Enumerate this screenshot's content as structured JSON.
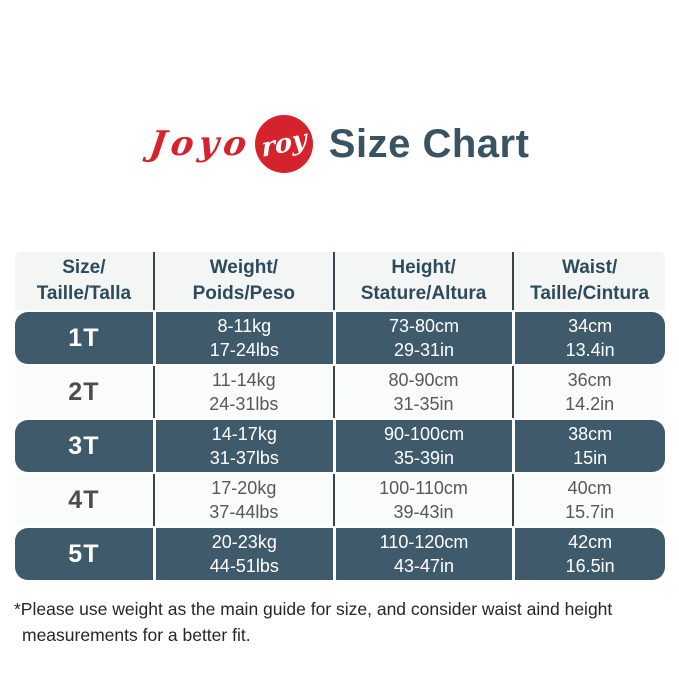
{
  "logo": {
    "left_text": "Joyo",
    "circle_text": "roy"
  },
  "title": "Size Chart",
  "colors": {
    "brand_red": "#d6222d",
    "title_slate": "#3a5363",
    "dark_row_teal": "#3f5a6b",
    "header_text_teal": "#2d4b5c",
    "light_row_text_gray": "#585858",
    "divider_dark": "#36424e",
    "header_band_bg": "#f4f5f5",
    "light_row_bg": "#fafbfb"
  },
  "table": {
    "columns": [
      {
        "id": "size",
        "line1": "Size/",
        "line2": "Taille/Talla"
      },
      {
        "id": "weight",
        "line1": "Weight/",
        "line2": "Poids/Peso"
      },
      {
        "id": "height",
        "line1": "Height/",
        "line2": "Stature/Altura"
      },
      {
        "id": "waist",
        "line1": "Waist/",
        "line2": "Taille/Cintura"
      }
    ],
    "rows": [
      {
        "size": "1T",
        "weight1": "8-11kg",
        "weight2": "17-24lbs",
        "height1": "73-80cm",
        "height2": "29-31in",
        "waist1": "34cm",
        "waist2": "13.4in"
      },
      {
        "size": "2T",
        "weight1": "11-14kg",
        "weight2": "24-31lbs",
        "height1": "80-90cm",
        "height2": "31-35in",
        "waist1": "36cm",
        "waist2": "14.2in"
      },
      {
        "size": "3T",
        "weight1": "14-17kg",
        "weight2": "31-37lbs",
        "height1": "90-100cm",
        "height2": "35-39in",
        "waist1": "38cm",
        "waist2": "15in"
      },
      {
        "size": "4T",
        "weight1": "17-20kg",
        "weight2": "37-44lbs",
        "height1": "100-110cm",
        "height2": "39-43in",
        "waist1": "40cm",
        "waist2": "15.7in"
      },
      {
        "size": "5T",
        "weight1": "20-23kg",
        "weight2": "44-51lbs",
        "height1": "110-120cm",
        "height2": "43-47in",
        "waist1": "42cm",
        "waist2": "16.5in"
      }
    ]
  },
  "footnote": {
    "line1": "*Please use weight as the main guide for size, and consider waist aind height",
    "line2": "measurements for a better fit."
  },
  "chart_data": {
    "type": "table",
    "title": "Size Chart",
    "columns": [
      "Size/Taille/Talla",
      "Weight/Poids/Peso",
      "Height/Stature/Altura",
      "Waist/Taille/Cintura"
    ],
    "rows": [
      [
        "1T",
        "8-11kg / 17-24lbs",
        "73-80cm / 29-31in",
        "34cm / 13.4in"
      ],
      [
        "2T",
        "11-14kg / 24-31lbs",
        "80-90cm / 31-35in",
        "36cm / 14.2in"
      ],
      [
        "3T",
        "14-17kg / 31-37lbs",
        "90-100cm / 35-39in",
        "38cm / 15in"
      ],
      [
        "4T",
        "17-20kg / 37-44lbs",
        "100-110cm / 39-43in",
        "40cm / 15.7in"
      ],
      [
        "5T",
        "20-23kg / 44-51lbs",
        "110-120cm / 43-47in",
        "42cm / 16.5in"
      ]
    ],
    "note": "*Please use weight as the main guide for size, and consider waist aind height measurements for a better fit."
  }
}
